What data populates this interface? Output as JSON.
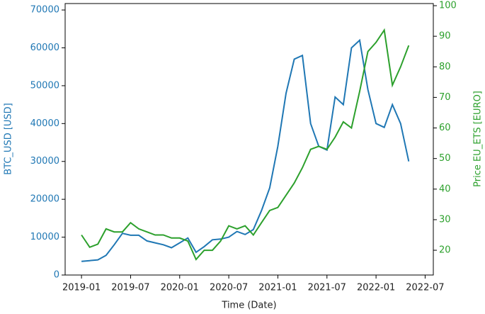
{
  "chart_data": {
    "type": "line",
    "xlabel": "Time (Date)",
    "ylabel": "BTC_USD [USD]",
    "y2label": "Price EU_ETS [EURO]",
    "x": [
      "2019-01",
      "2019-02",
      "2019-03",
      "2019-04",
      "2019-05",
      "2019-06",
      "2019-07",
      "2019-08",
      "2019-09",
      "2019-10",
      "2019-11",
      "2019-12",
      "2020-01",
      "2020-02",
      "2020-03",
      "2020-04",
      "2020-05",
      "2020-06",
      "2020-07",
      "2020-08",
      "2020-09",
      "2020-10",
      "2020-11",
      "2020-12",
      "2021-01",
      "2021-02",
      "2021-03",
      "2021-04",
      "2021-05",
      "2021-06",
      "2021-07",
      "2021-08",
      "2021-09",
      "2021-10",
      "2021-11",
      "2021-12",
      "2022-01",
      "2022-02",
      "2022-03",
      "2022-04",
      "2022-05"
    ],
    "series": [
      {
        "name": "BTC_USD [USD]",
        "color": "#1f77b4",
        "axis": "y",
        "values": [
          3600,
          3800,
          4000,
          5200,
          8000,
          11000,
          10500,
          10500,
          9000,
          8500,
          8000,
          7200,
          8500,
          9800,
          6000,
          7500,
          9300,
          9500,
          10000,
          11500,
          10700,
          12000,
          17000,
          23000,
          34000,
          48000,
          57000,
          58000,
          40000,
          34000,
          33000,
          47000,
          45000,
          60000,
          62000,
          49000,
          40000,
          39000,
          45000,
          40000,
          30000
        ]
      },
      {
        "name": "Price EU_ETS [EURO]",
        "color": "#2ca02c",
        "axis": "y2",
        "values": [
          25,
          21,
          22,
          27,
          26,
          26,
          29,
          27,
          26,
          25,
          25,
          24,
          24,
          23,
          17,
          20,
          20,
          23,
          28,
          27,
          28,
          25,
          29,
          33,
          34,
          38,
          42,
          47,
          53,
          54,
          53,
          57,
          62,
          60,
          72,
          85,
          88,
          92,
          74,
          80,
          87
        ]
      }
    ],
    "xlim": [
      "2018-11",
      "2022-08"
    ],
    "xticks": [
      "2019-01",
      "2019-07",
      "2020-01",
      "2020-07",
      "2021-01",
      "2021-07",
      "2022-01",
      "2022-07"
    ],
    "ylim": [
      0,
      71700
    ],
    "yticks": [
      0,
      10000,
      20000,
      30000,
      40000,
      50000,
      60000,
      70000
    ],
    "y2lim": [
      11.9,
      100.7
    ],
    "y2ticks": [
      20,
      30,
      40,
      50,
      60,
      70,
      80,
      90,
      100
    ]
  }
}
